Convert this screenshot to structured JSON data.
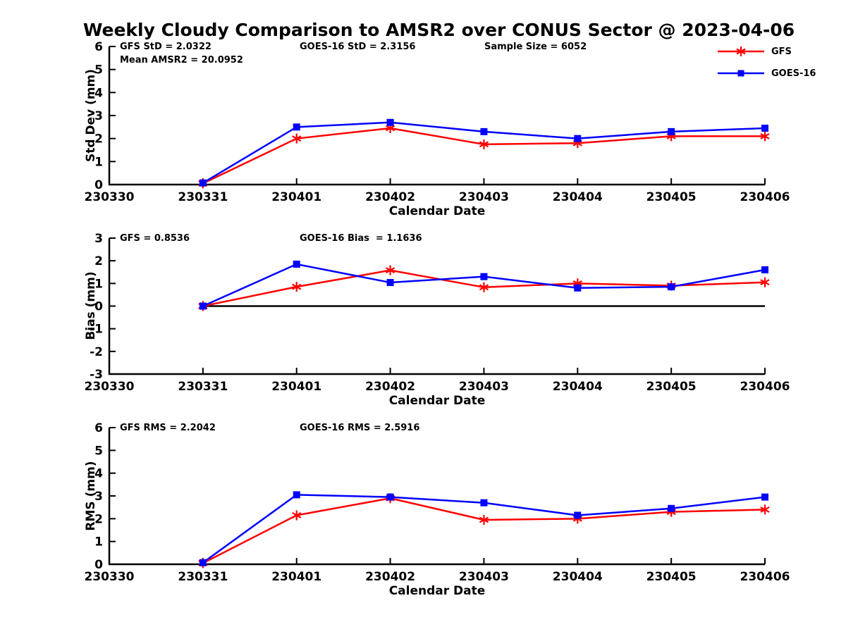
{
  "title": "Weekly Cloudy Comparison to AMSR2 over CONUS Sector @ 2023-04-06",
  "colors": {
    "gfs": "#ff0000",
    "goes_16": "#0000ff",
    "axis": "#000000"
  },
  "legend": {
    "items": [
      {
        "label": "GFS",
        "color": "#ff0000",
        "marker": "asterisk"
      },
      {
        "label": "GOES-16",
        "color": "#0000ff",
        "marker": "square"
      }
    ]
  },
  "x_tick_labels": [
    "230330",
    "230331",
    "230401",
    "230402",
    "230403",
    "230404",
    "230405",
    "230406"
  ],
  "chart_data": [
    {
      "type": "line",
      "panel": "std-dev",
      "ylabel": "Std Dev (mm)",
      "xlabel": "Calendar Date",
      "ylim": [
        0,
        6
      ],
      "yticks": [
        0,
        1,
        2,
        3,
        4,
        5,
        6
      ],
      "grid": false,
      "zero_line": false,
      "x": [
        "230331",
        "230401",
        "230402",
        "230403",
        "230404",
        "230405",
        "230406"
      ],
      "series": [
        {
          "name": "GFS",
          "color": "#ff0000",
          "marker": "asterisk",
          "values": [
            0.05,
            2.0,
            2.45,
            1.75,
            1.8,
            2.1,
            2.1
          ]
        },
        {
          "name": "GOES-16",
          "color": "#0000ff",
          "marker": "square",
          "values": [
            0.07,
            2.5,
            2.7,
            2.3,
            2.0,
            2.3,
            2.45
          ]
        }
      ],
      "annotations": [
        "GFS StD = 2.0322",
        "Mean AMSR2 = 20.0952",
        "GOES-16 StD = 2.3156",
        "Sample Size = 6052"
      ]
    },
    {
      "type": "line",
      "panel": "bias",
      "ylabel": "Bias (mm)",
      "xlabel": "Calendar Date",
      "ylim": [
        -3,
        3
      ],
      "yticks": [
        3,
        2,
        1,
        0,
        -1,
        -2,
        -3
      ],
      "grid": false,
      "zero_line": true,
      "x": [
        "230331",
        "230401",
        "230402",
        "230403",
        "230404",
        "230405",
        "230406"
      ],
      "series": [
        {
          "name": "GFS",
          "color": "#ff0000",
          "marker": "asterisk",
          "values": [
            0.0,
            0.85,
            1.58,
            0.83,
            1.0,
            0.9,
            1.05
          ]
        },
        {
          "name": "GOES-16",
          "color": "#0000ff",
          "marker": "square",
          "values": [
            0.0,
            1.85,
            1.04,
            1.3,
            0.8,
            0.85,
            1.6
          ]
        }
      ],
      "annotations": [
        "GFS = 0.8536",
        "GOES-16 Bias  = 1.1636"
      ]
    },
    {
      "type": "line",
      "panel": "rms",
      "ylabel": "RMS (mm)",
      "xlabel": "Calendar Date",
      "ylim": [
        0,
        6
      ],
      "yticks": [
        0,
        1,
        2,
        3,
        4,
        5,
        6
      ],
      "grid": false,
      "zero_line": false,
      "x": [
        "230331",
        "230401",
        "230402",
        "230403",
        "230404",
        "230405",
        "230406"
      ],
      "series": [
        {
          "name": "GFS",
          "color": "#ff0000",
          "marker": "asterisk",
          "values": [
            0.05,
            2.15,
            2.9,
            1.95,
            2.0,
            2.3,
            2.4
          ]
        },
        {
          "name": "GOES-16",
          "color": "#0000ff",
          "marker": "square",
          "values": [
            0.07,
            3.05,
            2.95,
            2.7,
            2.15,
            2.45,
            2.95
          ]
        }
      ],
      "annotations": [
        "GFS RMS = 2.2042",
        "GOES-16 RMS = 2.5916"
      ]
    }
  ]
}
